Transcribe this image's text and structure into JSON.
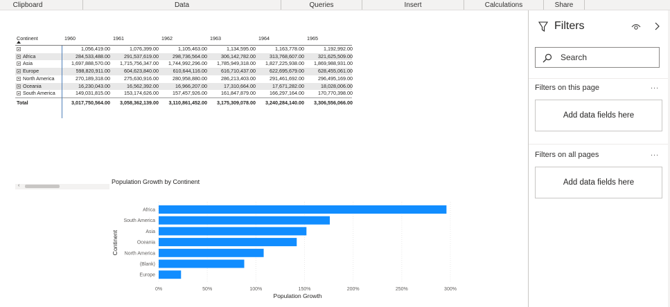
{
  "ribbon": {
    "groups": [
      "Clipboard",
      "Data",
      "Queries",
      "Insert",
      "Calculations",
      "Share"
    ]
  },
  "matrix": {
    "row_header": "Continent",
    "years": [
      "1960",
      "1961",
      "1962",
      "1963",
      "1964",
      "1965"
    ],
    "rows": [
      {
        "label": "",
        "values": [
          "1,056,419.00",
          "1,076,399.00",
          "1,105,463.00",
          "1,134,595.00",
          "1,163,778.00",
          "1,192,992.00"
        ]
      },
      {
        "label": "Africa",
        "values": [
          "284,533,488.00",
          "291,537,619.00",
          "298,736,564.00",
          "306,142,782.00",
          "313,768,607.00",
          "321,625,509.00"
        ]
      },
      {
        "label": "Asia",
        "values": [
          "1,697,888,570.00",
          "1,715,756,347.00",
          "1,744,992,296.00",
          "1,785,949,318.00",
          "1,827,225,938.00",
          "1,869,988,931.00"
        ]
      },
      {
        "label": "Europe",
        "values": [
          "598,820,911.00",
          "604,623,840.00",
          "610,644,116.00",
          "616,710,437.00",
          "622,695,679.00",
          "628,455,061.00"
        ]
      },
      {
        "label": "North America",
        "values": [
          "270,189,318.00",
          "275,630,916.00",
          "280,958,880.00",
          "286,213,403.00",
          "291,461,692.00",
          "296,495,169.00"
        ]
      },
      {
        "label": "Oceania",
        "values": [
          "16,230,043.00",
          "16,562,392.00",
          "16,966,207.00",
          "17,310,664.00",
          "17,671,282.00",
          "18,028,006.00"
        ]
      },
      {
        "label": "South America",
        "values": [
          "149,031,815.00",
          "153,174,626.00",
          "157,457,926.00",
          "161,847,879.00",
          "166,297,164.00",
          "170,770,398.00"
        ]
      }
    ],
    "total": {
      "label": "Total",
      "values": [
        "3,017,750,564.00",
        "3,058,362,139.00",
        "3,110,861,452.00",
        "3,175,309,078.00",
        "3,240,284,140.00",
        "3,306,556,066.00"
      ]
    }
  },
  "chart_data": {
    "type": "bar",
    "orientation": "horizontal",
    "title": "Population Growth by Continent",
    "xlabel": "Population Growth",
    "ylabel": "Continent",
    "categories": [
      "Africa",
      "South America",
      "Asia",
      "Oceania",
      "North America",
      "(Blank)",
      "Europe"
    ],
    "values": [
      296,
      176,
      152,
      142,
      108,
      88,
      23
    ],
    "xticks": [
      "0%",
      "50%",
      "100%",
      "150%",
      "200%",
      "250%",
      "300%"
    ],
    "xlim": [
      0,
      300
    ],
    "color": "#118dff"
  },
  "filters": {
    "title": "Filters",
    "search_placeholder": "Search",
    "page_section": "Filters on this page",
    "all_section": "Filters on all pages",
    "more": "...",
    "drop_text": "Add data fields here"
  },
  "colors": {
    "bar": "#118dff",
    "ribbon_bg": "#f3f2f1"
  }
}
